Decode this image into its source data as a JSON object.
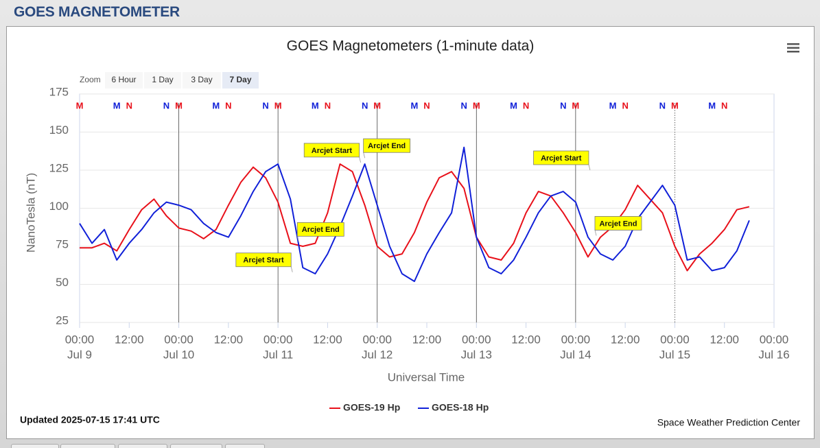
{
  "header": {
    "title": "GOES MAGNETOMETER"
  },
  "zoom": {
    "label": "Zoom",
    "buttons": [
      "6 Hour",
      "1 Day",
      "3 Day",
      "7 Day"
    ],
    "selected": 3
  },
  "chart_data": {
    "type": "line",
    "title": "GOES Magnetometers (1-minute data)",
    "xlabel": "Universal Time",
    "ylabel": "NanoTesla (nT)",
    "xlim": [
      0,
      168
    ],
    "xticks": [
      {
        "value": 0,
        "label": "00:00",
        "date": "Jul 9"
      },
      {
        "value": 12,
        "label": "12:00"
      },
      {
        "value": 24,
        "label": "00:00",
        "date": "Jul 10"
      },
      {
        "value": 36,
        "label": "12:00"
      },
      {
        "value": 48,
        "label": "00:00",
        "date": "Jul 11"
      },
      {
        "value": 60,
        "label": "12:00"
      },
      {
        "value": 72,
        "label": "00:00",
        "date": "Jul 12"
      },
      {
        "value": 84,
        "label": "12:00"
      },
      {
        "value": 96,
        "label": "00:00",
        "date": "Jul 13"
      },
      {
        "value": 108,
        "label": "12:00"
      },
      {
        "value": 120,
        "label": "00:00",
        "date": "Jul 14"
      },
      {
        "value": 132,
        "label": "12:00"
      },
      {
        "value": 144,
        "label": "00:00",
        "date": "Jul 15"
      },
      {
        "value": 156,
        "label": "12:00"
      },
      {
        "value": 168,
        "label": "00:00",
        "date": "Jul 16"
      }
    ],
    "ylim": [
      25,
      175
    ],
    "yticks": [
      25,
      50,
      75,
      100,
      125,
      150,
      175
    ],
    "grid": true,
    "x": [
      0,
      3,
      6,
      9,
      12,
      15,
      18,
      21,
      24,
      27,
      30,
      33,
      36,
      39,
      42,
      45,
      48,
      51,
      54,
      57,
      60,
      63,
      66,
      69,
      72,
      75,
      78,
      81,
      84,
      87,
      90,
      93,
      96,
      99,
      102,
      105,
      108,
      111,
      114,
      117,
      120,
      123,
      126,
      129,
      132,
      135,
      138,
      141,
      144,
      147,
      150,
      153,
      156,
      159,
      162
    ],
    "series": [
      {
        "name": "GOES-19 Hp",
        "color": "#e8101a",
        "values": [
          74,
          74,
          77,
          72,
          86,
          99,
          106,
          95,
          87,
          85,
          80,
          86,
          102,
          117,
          127,
          120,
          104,
          77,
          75,
          77,
          97,
          129,
          124,
          102,
          75,
          68,
          70,
          84,
          104,
          120,
          124,
          113,
          81,
          68,
          66,
          77,
          97,
          111,
          108,
          97,
          84,
          68,
          81,
          88,
          99,
          115,
          106,
          97,
          75,
          59,
          70,
          77,
          86,
          99,
          101
        ]
      },
      {
        "name": "GOES-18 Hp",
        "color": "#1020d8",
        "values": [
          90,
          77,
          86,
          66,
          77,
          86,
          97,
          104,
          102,
          99,
          90,
          84,
          81,
          95,
          111,
          124,
          129,
          106,
          61,
          57,
          70,
          88,
          108,
          129,
          102,
          75,
          57,
          52,
          70,
          84,
          97,
          140,
          81,
          61,
          57,
          66,
          81,
          97,
          108,
          111,
          104,
          81,
          70,
          66,
          75,
          93,
          104,
          115,
          102,
          66,
          68,
          59,
          61,
          72,
          92
        ]
      }
    ],
    "legend": "bottom",
    "markers": [
      {
        "label": "M",
        "x": 0,
        "series": 0
      },
      {
        "label": "M",
        "x": 24,
        "series": 0
      },
      {
        "label": "M",
        "x": 48,
        "series": 0
      },
      {
        "label": "M",
        "x": 72,
        "series": 0
      },
      {
        "label": "M",
        "x": 96,
        "series": 0
      },
      {
        "label": "M",
        "x": 120,
        "series": 0
      },
      {
        "label": "M",
        "x": 144,
        "series": 0
      },
      {
        "label": "N",
        "x": 12,
        "series": 0
      },
      {
        "label": "N",
        "x": 36,
        "series": 0
      },
      {
        "label": "N",
        "x": 60,
        "series": 0
      },
      {
        "label": "N",
        "x": 84,
        "series": 0
      },
      {
        "label": "N",
        "x": 108,
        "series": 0
      },
      {
        "label": "N",
        "x": 132,
        "series": 0
      },
      {
        "label": "N",
        "x": 156,
        "series": 0
      },
      {
        "label": "M",
        "x": 9,
        "series": 1
      },
      {
        "label": "M",
        "x": 33,
        "series": 1
      },
      {
        "label": "M",
        "x": 57,
        "series": 1
      },
      {
        "label": "M",
        "x": 81,
        "series": 1
      },
      {
        "label": "M",
        "x": 105,
        "series": 1
      },
      {
        "label": "M",
        "x": 129,
        "series": 1
      },
      {
        "label": "M",
        "x": 153,
        "series": 1
      },
      {
        "label": "N",
        "x": 21,
        "series": 1
      },
      {
        "label": "N",
        "x": 45,
        "series": 1
      },
      {
        "label": "N",
        "x": 69,
        "series": 1
      },
      {
        "label": "N",
        "x": 93,
        "series": 1
      },
      {
        "label": "N",
        "x": 117,
        "series": 1
      },
      {
        "label": "N",
        "x": 141,
        "series": 1
      }
    ],
    "annotations": [
      {
        "text": "Arcjet Start",
        "x": 51.5,
        "y": 58
      },
      {
        "text": "Arcjet End",
        "x": 53,
        "y": 78
      },
      {
        "text": "Arcjet Start",
        "x": 68,
        "y": 130
      },
      {
        "text": "Arcjet End",
        "x": 69,
        "y": 133
      },
      {
        "text": "Arcjet Start",
        "x": 123.5,
        "y": 125
      },
      {
        "text": "Arcjet End",
        "x": 125,
        "y": 82
      }
    ]
  },
  "footer": {
    "updated": "Updated 2025-07-15 17:41 UTC",
    "credit": "Space Weather Prediction Center"
  }
}
